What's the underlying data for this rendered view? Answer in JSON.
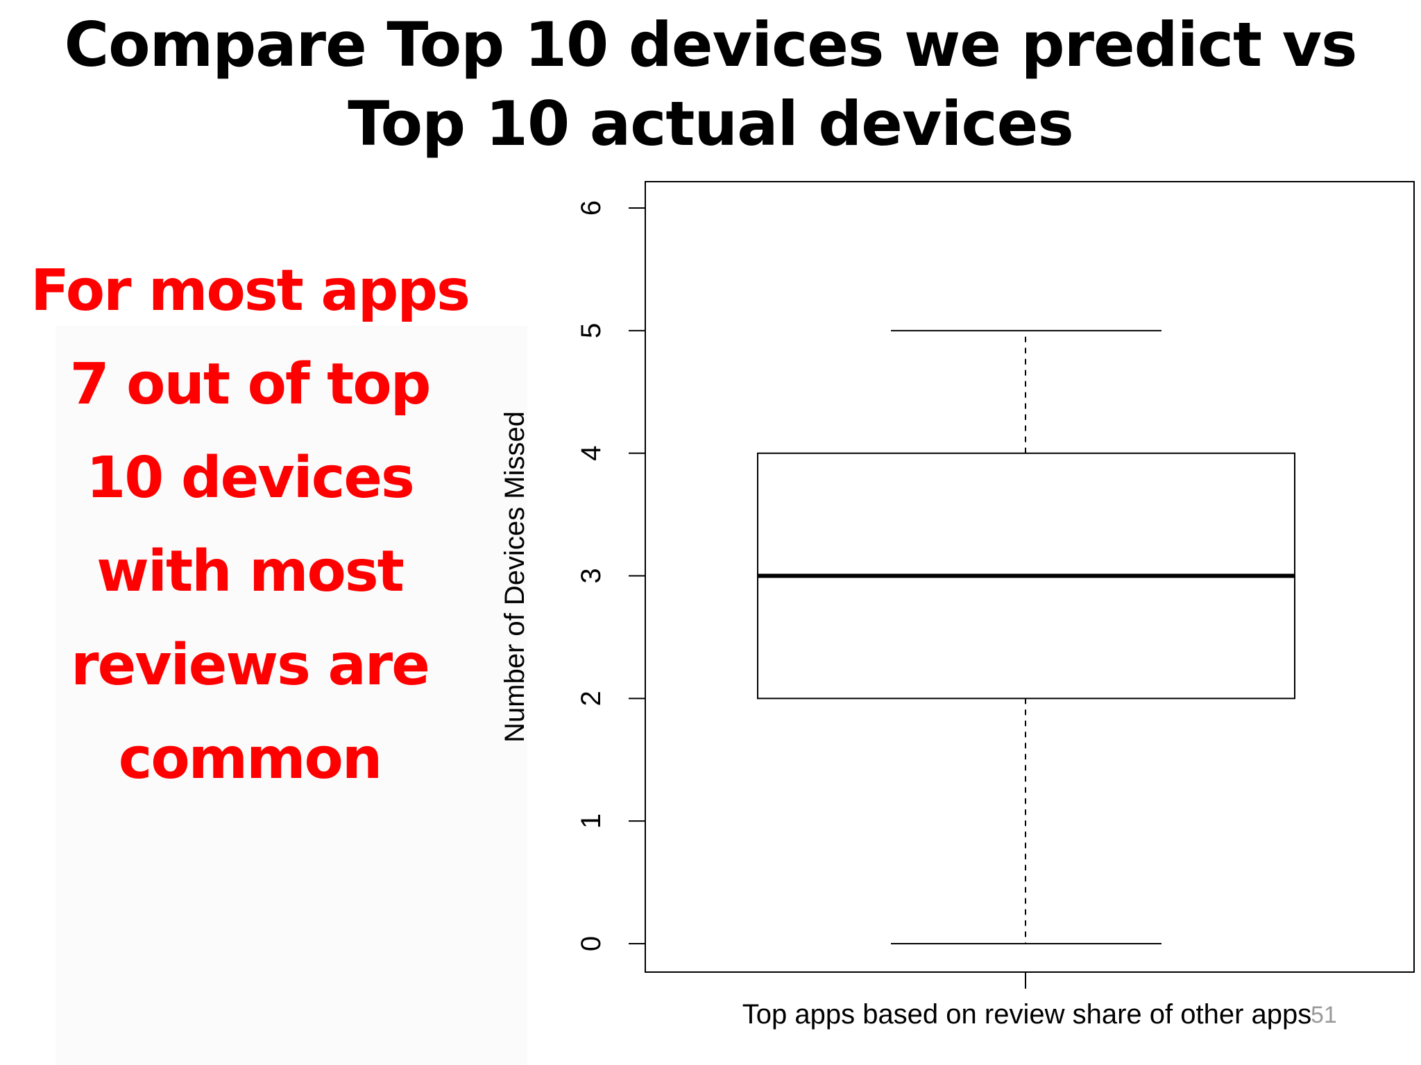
{
  "slide": {
    "title_lines": [
      "Compare Top 10 devices we predict vs",
      "Top 10 actual devices"
    ],
    "callout_lines": [
      "For most apps",
      "7 out of top",
      "10 devices",
      "with most",
      "reviews are",
      "common"
    ],
    "callout_color": "#ff0000",
    "page_number": "51"
  },
  "chart_data": {
    "type": "boxplot",
    "xlabel": "Top apps based on review share of other apps",
    "ylabel": "Number of Devices Missed",
    "ylim": [
      0,
      6
    ],
    "yticks": [
      0,
      1,
      2,
      3,
      4,
      5,
      6
    ],
    "grid": false,
    "box": {
      "whisker_low": 0,
      "q1": 2,
      "median": 3,
      "q3": 4,
      "whisker_high": 5
    }
  }
}
